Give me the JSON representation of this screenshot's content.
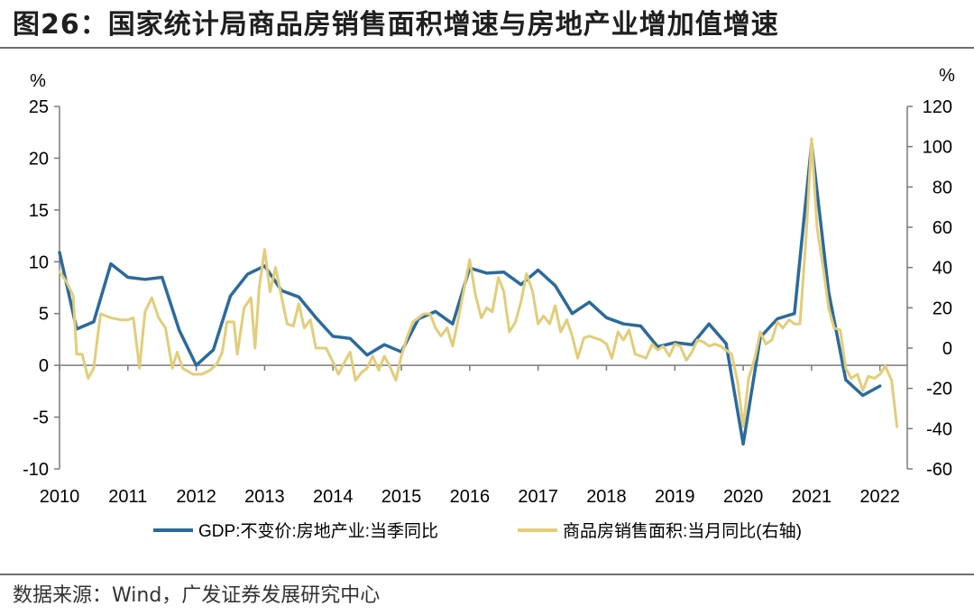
{
  "header": {
    "title": "图26：国家统计局商品房销售面积增速与房地产业增加值增速"
  },
  "footer": {
    "source": "数据来源：Wind，广发证券发展研究中心"
  },
  "chart_data": {
    "type": "line",
    "title": "国家统计局商品房销售面积增速与房地产业增加值增速",
    "left_axis": {
      "unit": "%",
      "ylim": [
        -10,
        25
      ],
      "ticks": [
        -10,
        -5,
        0,
        5,
        10,
        15,
        20,
        25
      ]
    },
    "right_axis": {
      "unit": "%",
      "ylim": [
        -60,
        120
      ],
      "ticks": [
        -60,
        -40,
        -20,
        0,
        20,
        40,
        60,
        80,
        100,
        120
      ]
    },
    "x_range": [
      2010,
      2022.4
    ],
    "x_ticks": [
      "2010",
      "2011",
      "2012",
      "2013",
      "2014",
      "2015",
      "2016",
      "2017",
      "2018",
      "2019",
      "2020",
      "2021",
      "2022"
    ],
    "series": [
      {
        "name": "GDP:不变价:房地产业:当季同比",
        "axis": "left",
        "color": "#2b6a9c",
        "points": [
          [
            2010.0,
            10.9
          ],
          [
            2010.25,
            3.5
          ],
          [
            2010.5,
            4.2
          ],
          [
            2010.75,
            9.8
          ],
          [
            2011.0,
            8.5
          ],
          [
            2011.25,
            8.3
          ],
          [
            2011.5,
            8.5
          ],
          [
            2011.75,
            3.4
          ],
          [
            2012.0,
            0.0
          ],
          [
            2012.25,
            1.5
          ],
          [
            2012.5,
            6.7
          ],
          [
            2012.75,
            8.8
          ],
          [
            2013.0,
            9.6
          ],
          [
            2013.25,
            7.2
          ],
          [
            2013.5,
            6.6
          ],
          [
            2013.75,
            4.6
          ],
          [
            2014.0,
            2.8
          ],
          [
            2014.25,
            2.6
          ],
          [
            2014.5,
            1.0
          ],
          [
            2014.75,
            2.0
          ],
          [
            2015.0,
            1.3
          ],
          [
            2015.25,
            4.5
          ],
          [
            2015.5,
            5.2
          ],
          [
            2015.75,
            4.0
          ],
          [
            2016.0,
            9.4
          ],
          [
            2016.25,
            8.9
          ],
          [
            2016.5,
            9.0
          ],
          [
            2016.75,
            7.8
          ],
          [
            2017.0,
            9.2
          ],
          [
            2017.25,
            7.7
          ],
          [
            2017.5,
            5.0
          ],
          [
            2017.75,
            6.1
          ],
          [
            2018.0,
            4.6
          ],
          [
            2018.25,
            4.0
          ],
          [
            2018.5,
            3.8
          ],
          [
            2018.75,
            1.8
          ],
          [
            2019.0,
            2.2
          ],
          [
            2019.25,
            2.0
          ],
          [
            2019.5,
            4.0
          ],
          [
            2019.75,
            2.1
          ],
          [
            2020.0,
            -7.6
          ],
          [
            2020.25,
            2.7
          ],
          [
            2020.5,
            4.5
          ],
          [
            2020.75,
            5.0
          ],
          [
            2021.0,
            21.4
          ],
          [
            2021.25,
            7.1
          ],
          [
            2021.5,
            -1.4
          ],
          [
            2021.75,
            -2.9
          ],
          [
            2022.0,
            -2.0
          ]
        ]
      },
      {
        "name": "商品房销售面积:当月同比(右轴)",
        "axis": "right",
        "color": "#e2cd79",
        "points": [
          [
            2010.0,
            38
          ],
          [
            2010.1,
            33
          ],
          [
            2010.2,
            26
          ],
          [
            2010.25,
            -3
          ],
          [
            2010.33,
            -3
          ],
          [
            2010.42,
            -15
          ],
          [
            2010.5,
            -10
          ],
          [
            2010.6,
            17
          ],
          [
            2010.75,
            15
          ],
          [
            2010.9,
            14
          ],
          [
            2011.0,
            14
          ],
          [
            2011.08,
            15
          ],
          [
            2011.17,
            -10
          ],
          [
            2011.25,
            18
          ],
          [
            2011.35,
            25
          ],
          [
            2011.45,
            15
          ],
          [
            2011.55,
            10
          ],
          [
            2011.65,
            -10
          ],
          [
            2011.72,
            -2
          ],
          [
            2011.8,
            -10
          ],
          [
            2011.95,
            -13
          ],
          [
            2012.08,
            -13
          ],
          [
            2012.2,
            -11
          ],
          [
            2012.3,
            -8
          ],
          [
            2012.38,
            -2
          ],
          [
            2012.45,
            13
          ],
          [
            2012.55,
            13
          ],
          [
            2012.6,
            -3
          ],
          [
            2012.7,
            20
          ],
          [
            2012.8,
            25
          ],
          [
            2012.86,
            0
          ],
          [
            2012.92,
            30
          ],
          [
            2013.0,
            49
          ],
          [
            2013.08,
            28
          ],
          [
            2013.16,
            40
          ],
          [
            2013.25,
            25
          ],
          [
            2013.33,
            12
          ],
          [
            2013.42,
            11
          ],
          [
            2013.5,
            22
          ],
          [
            2013.58,
            10
          ],
          [
            2013.67,
            14
          ],
          [
            2013.75,
            0
          ],
          [
            2013.9,
            0
          ],
          [
            2014.0,
            -7
          ],
          [
            2014.08,
            -13
          ],
          [
            2014.17,
            -7
          ],
          [
            2014.25,
            -2
          ],
          [
            2014.33,
            -16
          ],
          [
            2014.42,
            -12
          ],
          [
            2014.5,
            -10
          ],
          [
            2014.58,
            -4
          ],
          [
            2014.67,
            -11
          ],
          [
            2014.75,
            -4
          ],
          [
            2014.83,
            -9
          ],
          [
            2014.92,
            -16
          ],
          [
            2015.0,
            -4
          ],
          [
            2015.08,
            5
          ],
          [
            2015.17,
            13
          ],
          [
            2015.25,
            15
          ],
          [
            2015.33,
            17
          ],
          [
            2015.42,
            17
          ],
          [
            2015.5,
            10
          ],
          [
            2015.58,
            6
          ],
          [
            2015.67,
            10
          ],
          [
            2015.75,
            1
          ],
          [
            2015.83,
            14
          ],
          [
            2015.92,
            30
          ],
          [
            2016.0,
            44
          ],
          [
            2016.08,
            27
          ],
          [
            2016.17,
            15
          ],
          [
            2016.25,
            20
          ],
          [
            2016.33,
            18
          ],
          [
            2016.42,
            35
          ],
          [
            2016.5,
            28
          ],
          [
            2016.58,
            8
          ],
          [
            2016.67,
            13
          ],
          [
            2016.75,
            23
          ],
          [
            2016.83,
            37
          ],
          [
            2016.92,
            28
          ],
          [
            2017.0,
            12
          ],
          [
            2017.08,
            16
          ],
          [
            2017.17,
            12
          ],
          [
            2017.25,
            21
          ],
          [
            2017.33,
            8
          ],
          [
            2017.42,
            14
          ],
          [
            2017.5,
            6
          ],
          [
            2017.58,
            -5
          ],
          [
            2017.67,
            5
          ],
          [
            2017.75,
            6
          ],
          [
            2017.83,
            5
          ],
          [
            2017.92,
            4
          ],
          [
            2018.0,
            2
          ],
          [
            2018.08,
            -5
          ],
          [
            2018.17,
            8
          ],
          [
            2018.25,
            4
          ],
          [
            2018.33,
            9
          ],
          [
            2018.42,
            -3
          ],
          [
            2018.5,
            -4
          ],
          [
            2018.58,
            -5
          ],
          [
            2018.67,
            2
          ],
          [
            2018.75,
            -1
          ],
          [
            2018.83,
            1
          ],
          [
            2018.92,
            -4
          ],
          [
            2019.0,
            2
          ],
          [
            2019.08,
            1
          ],
          [
            2019.17,
            -6
          ],
          [
            2019.25,
            -2
          ],
          [
            2019.33,
            4
          ],
          [
            2019.42,
            3
          ],
          [
            2019.5,
            1
          ],
          [
            2019.58,
            2
          ],
          [
            2019.67,
            1
          ],
          [
            2019.75,
            -1
          ],
          [
            2019.83,
            -3
          ],
          [
            2019.92,
            -17
          ],
          [
            2020.0,
            -39
          ],
          [
            2020.08,
            -15
          ],
          [
            2020.17,
            -5
          ],
          [
            2020.25,
            8
          ],
          [
            2020.33,
            2
          ],
          [
            2020.42,
            4
          ],
          [
            2020.5,
            13
          ],
          [
            2020.58,
            10
          ],
          [
            2020.67,
            14
          ],
          [
            2020.75,
            12
          ],
          [
            2020.83,
            12
          ],
          [
            2020.92,
            55
          ],
          [
            2021.0,
            104
          ],
          [
            2021.08,
            60
          ],
          [
            2021.17,
            40
          ],
          [
            2021.25,
            20
          ],
          [
            2021.33,
            10
          ],
          [
            2021.42,
            9
          ],
          [
            2021.5,
            -10
          ],
          [
            2021.58,
            -15
          ],
          [
            2021.67,
            -13
          ],
          [
            2021.75,
            -21
          ],
          [
            2021.83,
            -14
          ],
          [
            2021.92,
            -15
          ],
          [
            2022.0,
            -13
          ],
          [
            2022.08,
            -9
          ],
          [
            2022.17,
            -16
          ],
          [
            2022.25,
            -39
          ]
        ]
      }
    ]
  }
}
